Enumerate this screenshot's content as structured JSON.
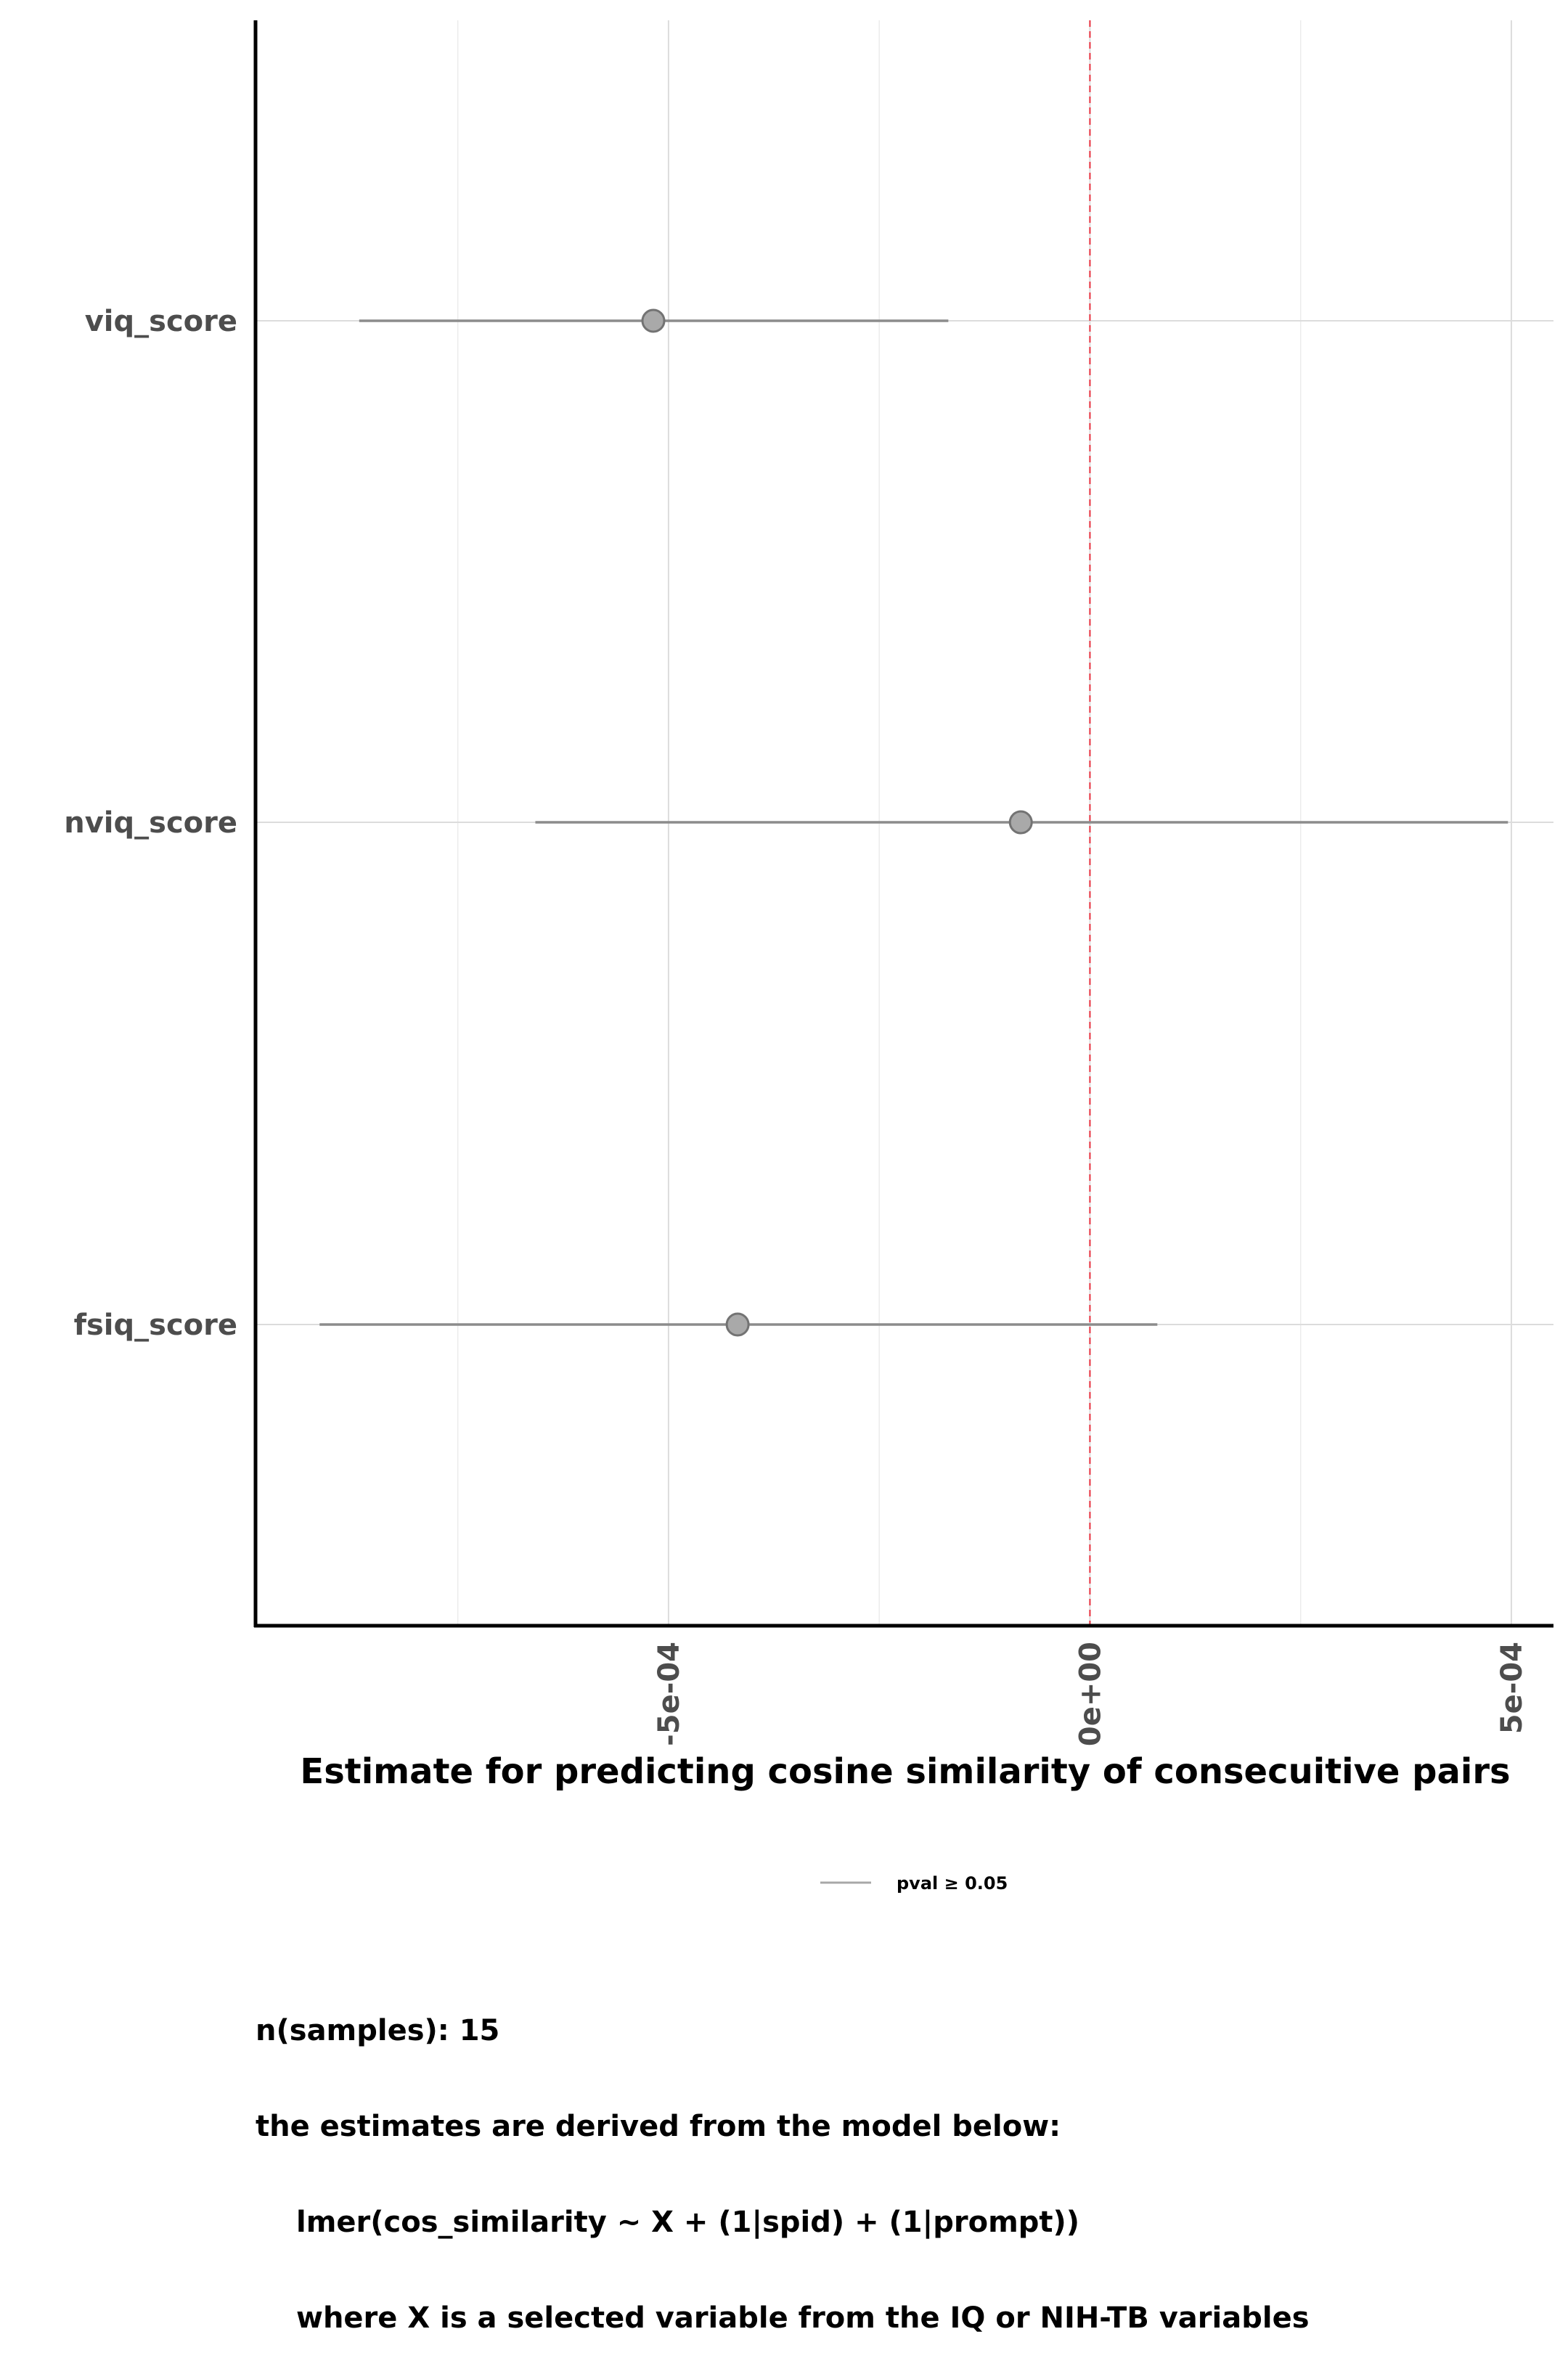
{
  "chart_data": {
    "type": "forest",
    "xlabel": "Estimate for predicting cosine similarity of consecuitive pairs",
    "ylabel": "",
    "xlim": [
      -0.00099,
      0.00055
    ],
    "x_ticks": [
      {
        "value": -0.0005,
        "label": "-5e-04"
      },
      {
        "value": 0.0,
        "label": "0e+00"
      },
      {
        "value": 0.0005,
        "label": "5e-04"
      }
    ],
    "reference_line": {
      "value": 0.0,
      "style": "dashed",
      "color": "#e8303e"
    },
    "grid": true,
    "categories": [
      "viq_score",
      "nviq_score",
      "fsiq_score"
    ],
    "estimates": [
      {
        "variable": "viq_score",
        "estimate": -0.000518,
        "ci_low": -0.000867,
        "ci_high": -0.000168
      },
      {
        "variable": "nviq_score",
        "estimate": -8.2e-05,
        "ci_low": -0.000658,
        "ci_high": 0.000496
      },
      {
        "variable": "fsiq_score",
        "estimate": -0.000418,
        "ci_low": -0.000914,
        "ci_high": 8e-05
      }
    ],
    "legend": {
      "position": "bottom",
      "entries": [
        {
          "label": "pval ≥ 0.05",
          "color": "#a8a8a8"
        }
      ]
    },
    "colors": {
      "point_fill": "#a9a9a9",
      "point_stroke": "#737373",
      "interval": "#8c8c8c",
      "axis": "#000000",
      "tick_text": "#4d4d4d"
    }
  },
  "caption": {
    "line1": "n(samples): 15",
    "line2": "the estimates are derived from the model below:",
    "line3": "lmer(cos_similarity ~ X + (1|spid) + (1|prompt))",
    "line4": "where X is a selected variable from the IQ or NIH-TB variables"
  }
}
